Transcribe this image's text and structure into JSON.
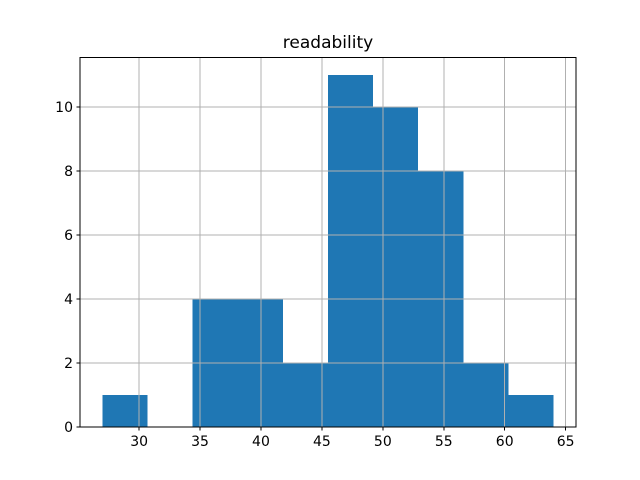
{
  "chart_data": {
    "type": "bar",
    "subtype": "histogram",
    "title": "readability",
    "xlabel": "",
    "ylabel": "",
    "bin_edges": [
      27.0,
      30.7,
      34.4,
      38.1,
      41.8,
      45.5,
      49.2,
      52.9,
      56.6,
      60.3,
      64.0
    ],
    "counts": [
      1,
      0,
      4,
      4,
      2,
      11,
      10,
      8,
      2,
      1
    ],
    "x_ticks": [
      30,
      35,
      40,
      45,
      50,
      55,
      60,
      65
    ],
    "y_ticks": [
      0,
      2,
      4,
      6,
      8,
      10
    ],
    "xlim": [
      25.15,
      65.85
    ],
    "ylim": [
      0,
      11.55
    ],
    "grid": true,
    "legend": false,
    "bar_color": "#1f77b4",
    "grid_color": "#b0b0b0",
    "axis_color": "#000000",
    "background_color": "#ffffff"
  }
}
